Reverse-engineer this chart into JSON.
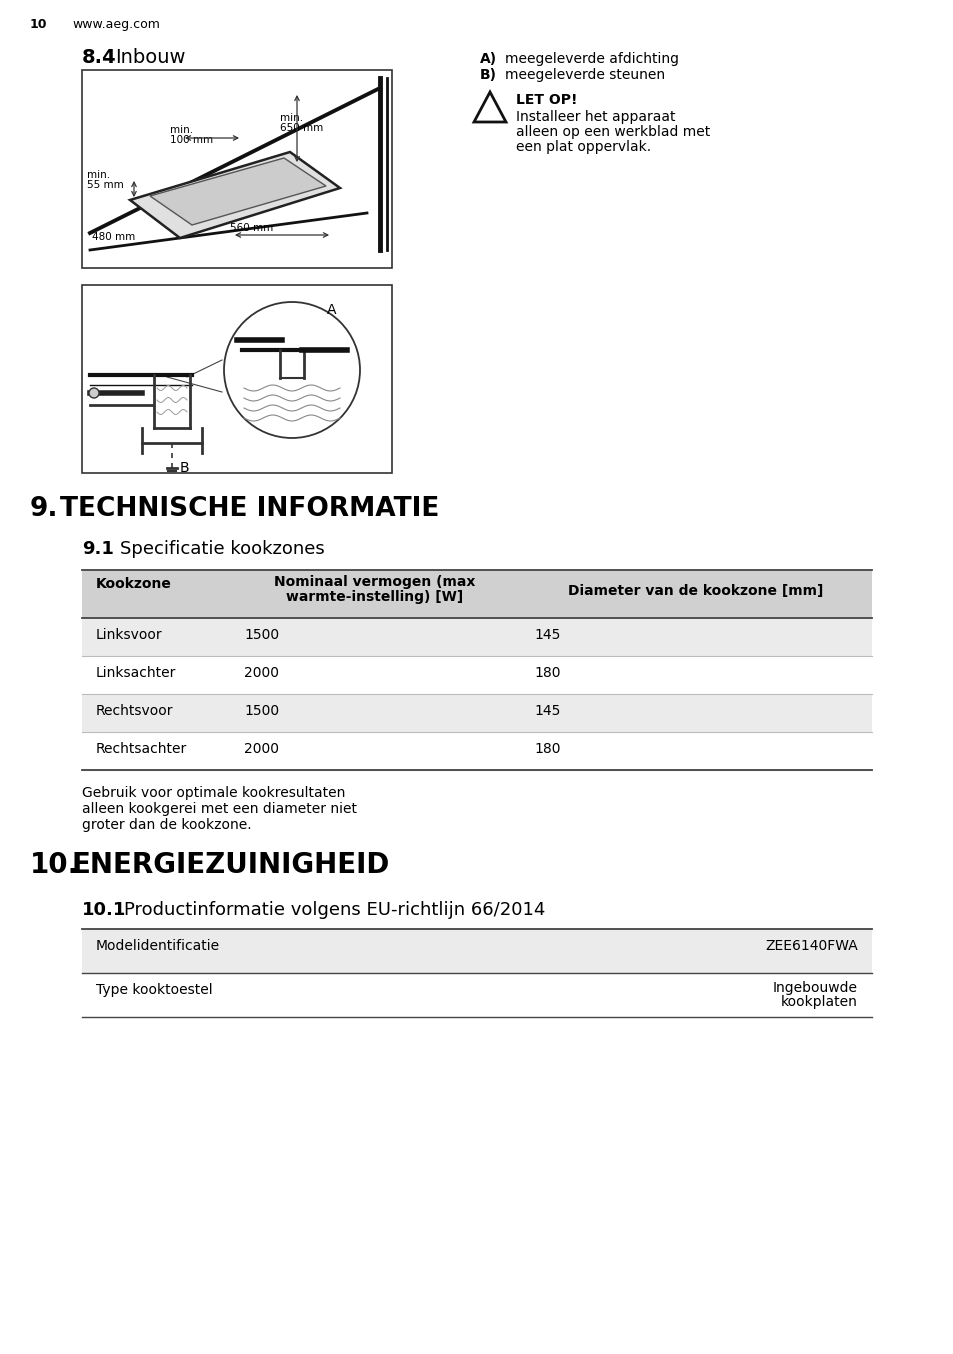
{
  "page_num": "10",
  "website": "www.aeg.com",
  "section_84_bold": "8.4",
  "section_84_normal": "Inbouw",
  "section_84_A": "meegeleverde afdichting",
  "section_84_B": "meegeleverde steunen",
  "let_op_title": "LET OP!",
  "let_op_line1": "Installeer het apparaat",
  "let_op_line2": "alleen op een werkblad met",
  "let_op_line3": "een plat oppervlak.",
  "section_9_num": "9.",
  "section_9_text": "TECHNISCHE INFORMATIE",
  "section_91_num": "9.1",
  "section_91_text": "Specificatie kookzones",
  "table1_col0_header": "Kookzone",
  "table1_col1_header_line1": "Nominaal vermogen (max",
  "table1_col1_header_line2": "warmte-instelling) [W]",
  "table1_col2_header": "Diameter van de kookzone [mm]",
  "table1_rows": [
    [
      "Linksvoor",
      "1500",
      "145"
    ],
    [
      "Linksachter",
      "2000",
      "180"
    ],
    [
      "Rechtsvoor",
      "1500",
      "145"
    ],
    [
      "Rechtsachter",
      "2000",
      "180"
    ]
  ],
  "footnote_line1": "Gebruik voor optimale kookresultaten",
  "footnote_line2": "alleen kookgerei met een diameter niet",
  "footnote_line3": "groter dan de kookzone.",
  "section_10_num": "10.",
  "section_10_text": "ENERGIEZUINIGHEID",
  "section_101_num": "10.1",
  "section_101_text": "Productinformatie volgens EU-richtlijn 66/2014",
  "table2_rows": [
    [
      "Modelidentificatie",
      "ZEE6140FWA"
    ],
    [
      "Type kooktoestel",
      "Ingebouwde\nkookplaten"
    ]
  ],
  "bg_color": "#ffffff",
  "table_header_bg": "#d0d0d0",
  "table_row_bg_odd": "#ebebeb",
  "table_row_bg_even": "#ffffff",
  "text_color": "#000000",
  "line_dark": "#222222",
  "line_mid": "#555555",
  "line_light": "#aaaaaa"
}
